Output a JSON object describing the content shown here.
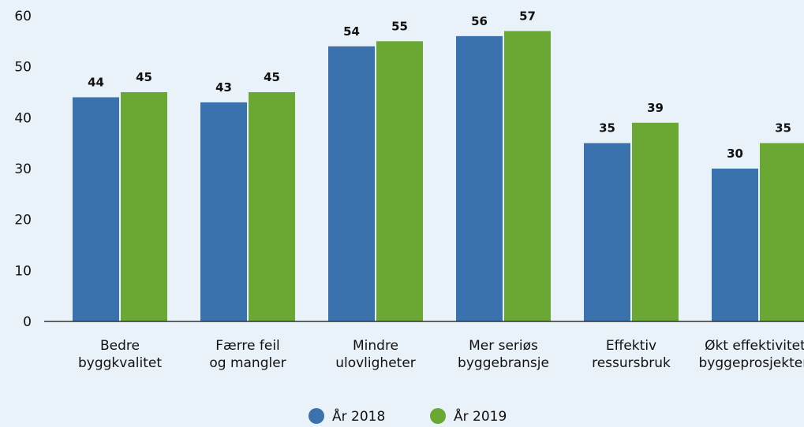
{
  "chart_data": {
    "type": "bar",
    "categories": [
      [
        "Bedre",
        "byggkvalitet"
      ],
      [
        "Færre feil",
        "og mangler"
      ],
      [
        "Mindre",
        "ulovligheter"
      ],
      [
        "Mer seriøs",
        "byggebransje"
      ],
      [
        "Effektiv",
        "ressursbruk"
      ],
      [
        "Økt effektivitet i",
        "byggeprosjektene"
      ]
    ],
    "series": [
      {
        "name": "År 2018",
        "values": [
          44,
          43,
          54,
          56,
          35,
          30
        ],
        "color": "#3a72ae"
      },
      {
        "name": "År 2019",
        "values": [
          45,
          45,
          55,
          57,
          39,
          35
        ],
        "color": "#6aa833"
      }
    ],
    "ylim": [
      0,
      60
    ],
    "yticks": [
      0,
      10,
      20,
      30,
      40,
      50,
      60
    ],
    "grid": false,
    "legend_position": "bottom-center",
    "data_labels": true,
    "background": "#e9f2f8"
  }
}
